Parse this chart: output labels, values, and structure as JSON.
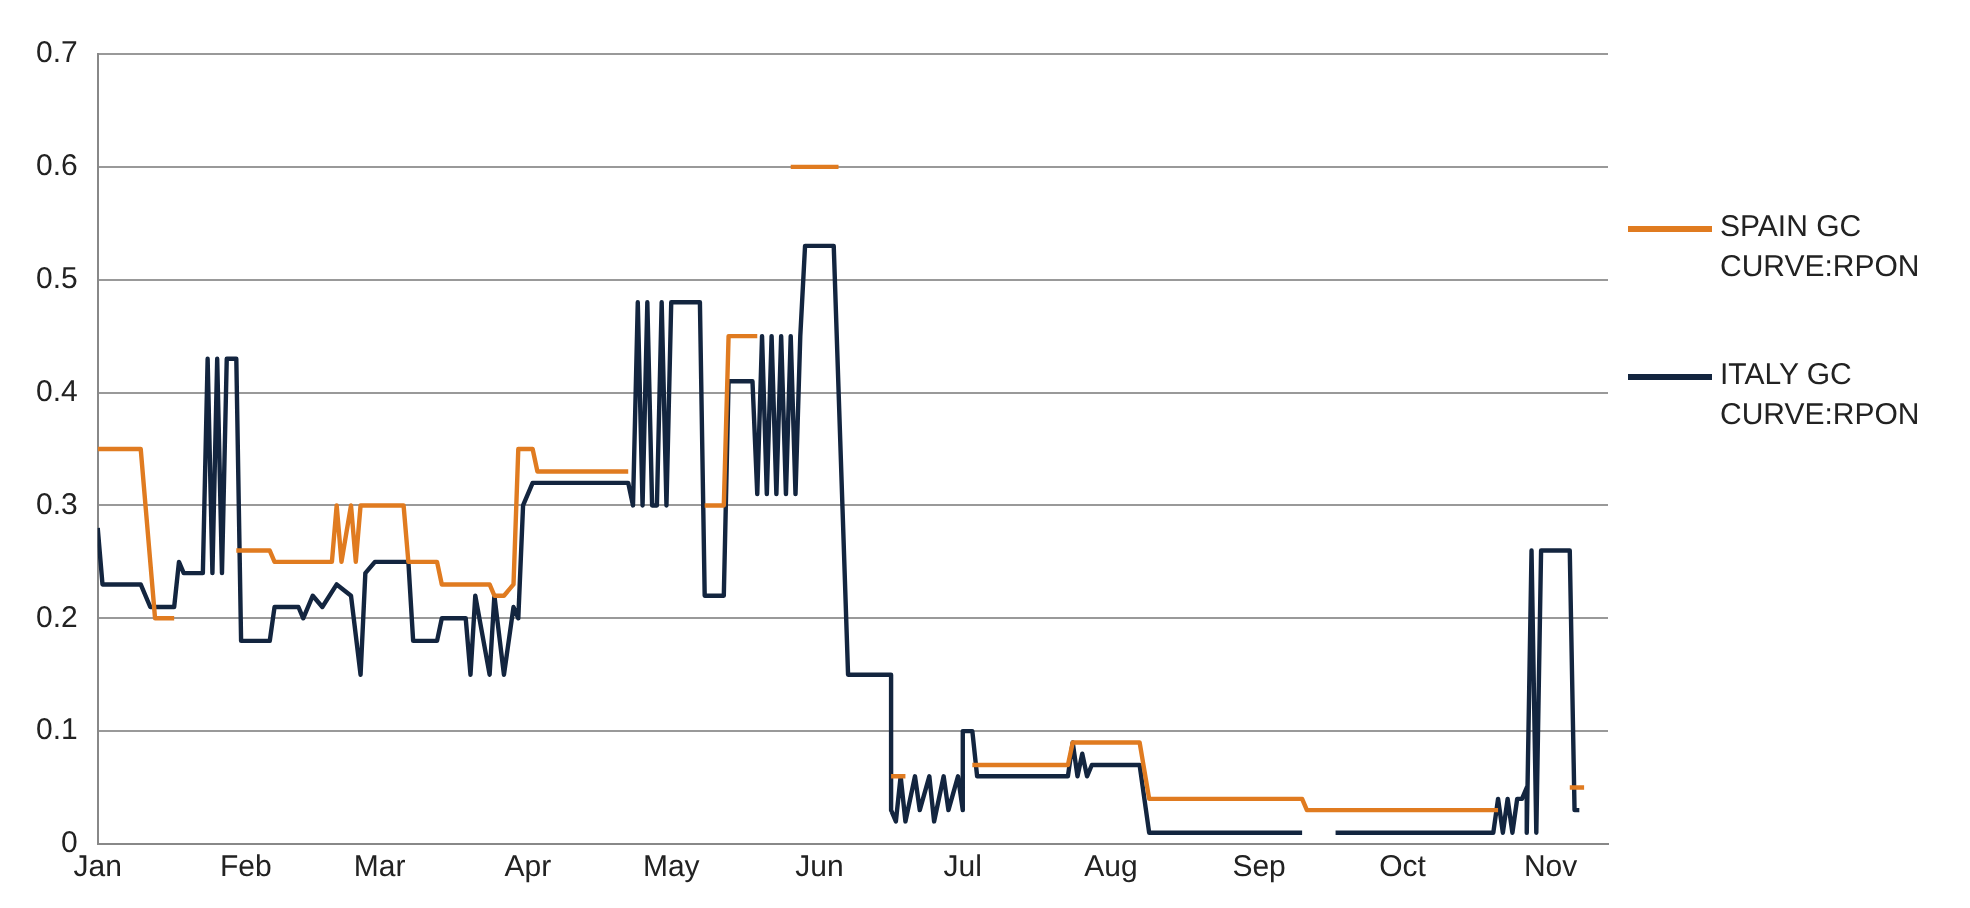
{
  "chart_data": {
    "type": "line",
    "xlim": [
      "--01-01",
      "--11-13"
    ],
    "xticks": [
      {
        "value": "--01-01",
        "label": "Jan"
      },
      {
        "value": "--02-01",
        "label": "Feb"
      },
      {
        "value": "--03-01",
        "label": "Mar"
      },
      {
        "value": "--04-01",
        "label": "Apr"
      },
      {
        "value": "--05-01",
        "label": "May"
      },
      {
        "value": "--06-01",
        "label": "Jun"
      },
      {
        "value": "--07-01",
        "label": "Jul"
      },
      {
        "value": "--08-01",
        "label": "Aug"
      },
      {
        "value": "--09-01",
        "label": "Sep"
      },
      {
        "value": "--10-01",
        "label": "Oct"
      },
      {
        "value": "--11-01",
        "label": "Nov"
      }
    ],
    "ylim": [
      0,
      0.7
    ],
    "yticks": [
      0,
      0.1,
      0.2,
      0.3,
      0.4,
      0.5,
      0.6,
      0.7
    ],
    "grid": "y",
    "legend": "right",
    "marker": "none",
    "line_style": "solid",
    "series": [
      {
        "name": "SPAIN GC CURVE:RPON",
        "color": "#e07b20",
        "x": [
          "--01-01",
          "--01-10",
          "--01-13",
          "--01-17",
          "--01-21",
          "--01-30",
          "--02-06",
          "--02-07",
          "--02-19",
          "--02-20",
          "--02-21",
          "--02-23",
          "--02-24",
          "--02-25",
          "--03-06",
          "--03-07",
          "--03-13",
          "--03-14",
          "--03-24",
          "--03-25",
          "--03-27",
          "--03-29",
          "--03-30",
          "--04-02",
          "--04-03",
          "--04-22",
          "--04-25",
          "--05-08",
          "--05-12",
          "--05-13",
          "--05-19",
          "--05-22",
          "--05-26",
          "--06-05",
          "--06-06",
          "--06-16",
          "--06-19",
          "--06-21",
          "--07-03",
          "--07-23",
          "--07-24",
          "--08-07",
          "--08-09",
          "--09-10",
          "--09-11",
          "--10-21",
          "--10-25",
          "--11-05",
          "--11-08"
        ],
        "values": [
          0.35,
          0.35,
          0.2,
          0.2,
          null,
          0.26,
          0.26,
          0.25,
          0.25,
          0.3,
          0.25,
          0.3,
          0.25,
          0.3,
          0.3,
          0.25,
          0.25,
          0.23,
          0.23,
          0.22,
          0.22,
          0.23,
          0.35,
          0.35,
          0.33,
          0.33,
          null,
          0.3,
          0.3,
          0.45,
          0.45,
          null,
          0.6,
          0.6,
          null,
          0.06,
          0.06,
          null,
          0.07,
          0.07,
          0.09,
          0.09,
          0.04,
          0.04,
          0.03,
          0.03,
          null,
          0.05,
          0.05
        ]
      },
      {
        "name": "ITALY GC CURVE:RPON",
        "color": "#13253f",
        "x": [
          "--01-01",
          "--01-02",
          "--01-10",
          "--01-12",
          "--01-17",
          "--01-18",
          "--01-19",
          "--01-23",
          "--01-24",
          "--01-25",
          "--01-26",
          "--01-27",
          "--01-28",
          "--01-30",
          "--01-31",
          "--02-06",
          "--02-07",
          "--02-12",
          "--02-13",
          "--02-15",
          "--02-17",
          "--02-20",
          "--02-23",
          "--02-25",
          "--02-26",
          "--02-28",
          "--03-07",
          "--03-08",
          "--03-13",
          "--03-14",
          "--03-19",
          "--03-20",
          "--03-21",
          "--03-24",
          "--03-25",
          "--03-27",
          "--03-29",
          "--03-30",
          "--03-31",
          "--04-02",
          "--04-22",
          "--04-23",
          "--04-24",
          "--04-25",
          "--04-26",
          "--04-27",
          "--04-28",
          "--04-29",
          "--04-30",
          "--05-01",
          "--05-07",
          "--05-08",
          "--05-12",
          "--05-13",
          "--05-18",
          "--05-19",
          "--05-20",
          "--05-21",
          "--05-22",
          "--05-23",
          "--05-24",
          "--05-25",
          "--05-26",
          "--05-27",
          "--05-28",
          "--05-29",
          "--06-04",
          "--06-07",
          "--06-16",
          "--06-16",
          "--06-17",
          "--06-18",
          "--06-19",
          "--06-21",
          "--06-22",
          "--06-24",
          "--06-25",
          "--06-27",
          "--06-28",
          "--06-30",
          "--07-01",
          "--07-01",
          "--07-03",
          "--07-04",
          "--07-23",
          "--07-24",
          "--07-25",
          "--07-26",
          "--07-27",
          "--07-28",
          "--08-07",
          "--08-09",
          "--09-10",
          "--09-13",
          "--09-17",
          "--10-20",
          "--10-21",
          "--10-22",
          "--10-23",
          "--10-24",
          "--10-25",
          "--10-26",
          "--10-27",
          "--10-27",
          "--10-28",
          "--10-29",
          "--10-30",
          "--11-05",
          "--11-06",
          "--11-07"
        ],
        "values": [
          0.28,
          0.23,
          0.23,
          0.21,
          0.21,
          0.25,
          0.24,
          0.24,
          0.43,
          0.24,
          0.43,
          0.24,
          0.43,
          0.43,
          0.18,
          0.18,
          0.21,
          0.21,
          0.2,
          0.22,
          0.21,
          0.23,
          0.22,
          0.15,
          0.24,
          0.25,
          0.25,
          0.18,
          0.18,
          0.2,
          0.2,
          0.15,
          0.22,
          0.15,
          0.22,
          0.15,
          0.21,
          0.2,
          0.3,
          0.32,
          0.32,
          0.3,
          0.48,
          0.3,
          0.48,
          0.3,
          0.3,
          0.48,
          0.3,
          0.48,
          0.48,
          0.22,
          0.22,
          0.41,
          0.41,
          0.31,
          0.45,
          0.31,
          0.45,
          0.31,
          0.45,
          0.31,
          0.45,
          0.31,
          0.45,
          0.53,
          0.53,
          0.15,
          0.15,
          0.03,
          0.02,
          0.06,
          0.02,
          0.06,
          0.03,
          0.06,
          0.02,
          0.06,
          0.03,
          0.06,
          0.03,
          0.1,
          0.1,
          0.06,
          0.06,
          0.09,
          0.06,
          0.08,
          0.06,
          0.07,
          0.07,
          0.01,
          0.01,
          null,
          0.01,
          0.01,
          0.04,
          0.01,
          0.04,
          0.01,
          0.04,
          0.04,
          0.05,
          0.01,
          0.26,
          0.01,
          0.26,
          0.26,
          0.03,
          0.03
        ]
      }
    ]
  }
}
